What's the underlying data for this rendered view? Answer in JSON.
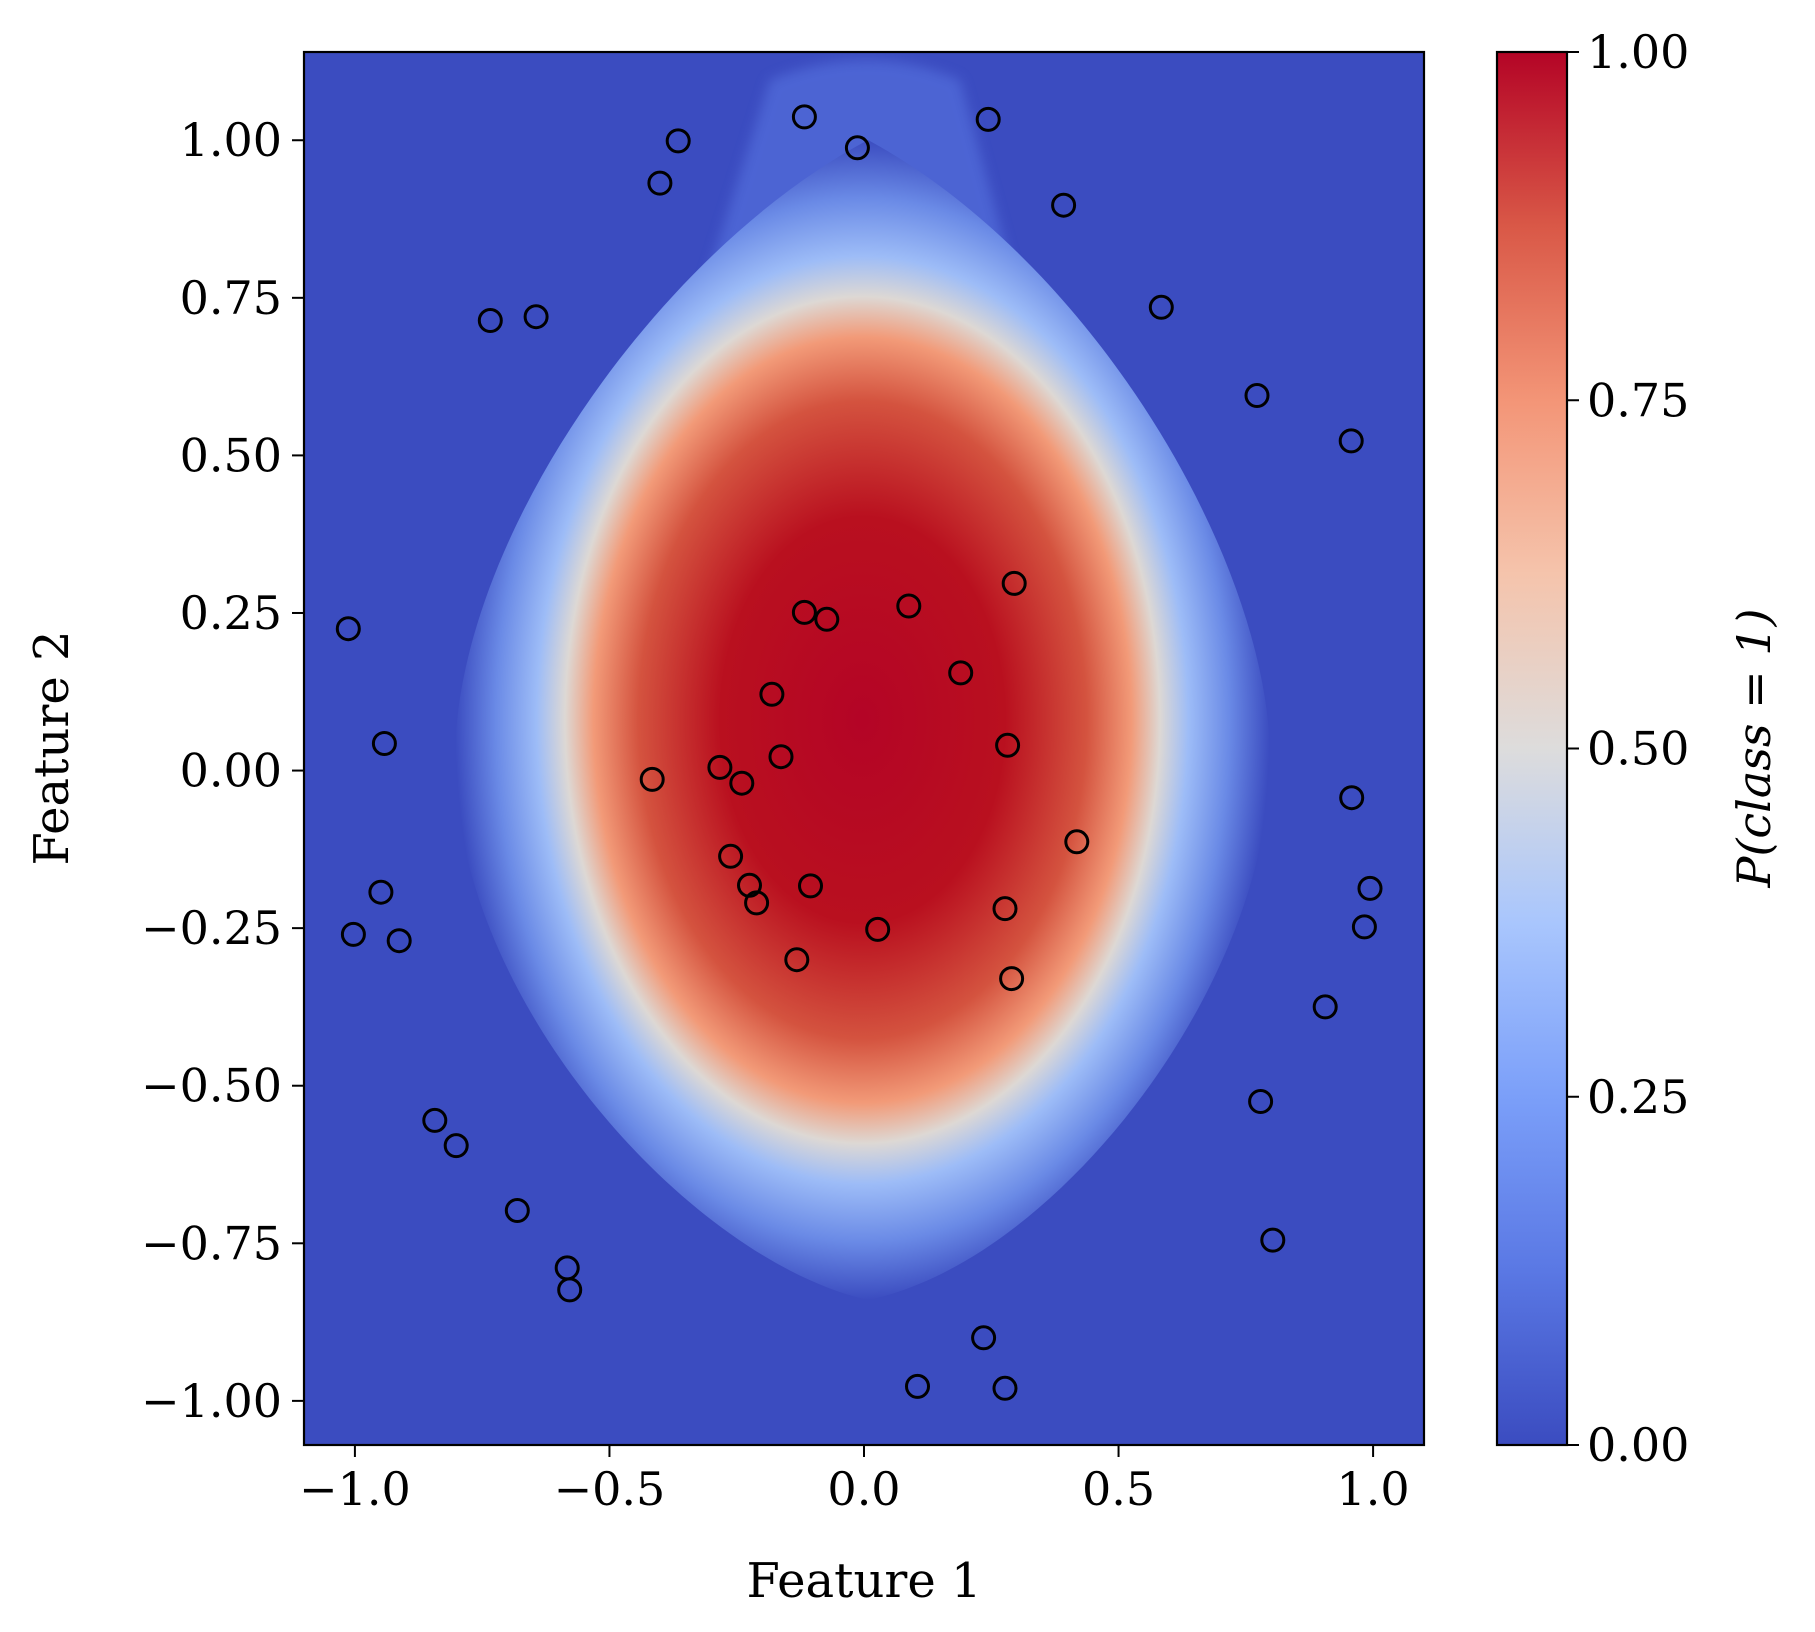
{
  "chart_data": {
    "type": "scatter",
    "subtype": "classifier probability heatmap with scatter overlay",
    "xlabel": "Feature 1",
    "ylabel": "Feature 2",
    "xlim": [
      -1.1,
      1.1
    ],
    "ylim": [
      -1.07,
      1.14
    ],
    "x_ticks": [
      {
        "value": -1.0,
        "label": "−1.0"
      },
      {
        "value": -0.5,
        "label": "−0.5"
      },
      {
        "value": 0.0,
        "label": "0.0"
      },
      {
        "value": 0.5,
        "label": "0.5"
      },
      {
        "value": 1.0,
        "label": "1.0"
      }
    ],
    "y_ticks": [
      {
        "value": 1.0,
        "label": "1.00"
      },
      {
        "value": 0.75,
        "label": "0.75"
      },
      {
        "value": 0.5,
        "label": "0.50"
      },
      {
        "value": 0.25,
        "label": "0.25"
      },
      {
        "value": 0.0,
        "label": "0.00"
      },
      {
        "value": -0.25,
        "label": "−0.25"
      },
      {
        "value": -0.5,
        "label": "−0.50"
      },
      {
        "value": -0.75,
        "label": "−0.75"
      },
      {
        "value": -1.0,
        "label": "−1.00"
      }
    ],
    "grid": false,
    "colormap": "coolwarm",
    "colors": {
      "low": "#3b4cc0",
      "mid": "#dddddd",
      "high": "#b40426",
      "marker_edge": "#000000"
    },
    "colorbar": {
      "label": "P(class = 1)",
      "range": [
        0.0,
        1.0
      ],
      "ticks": [
        {
          "value": 1.0,
          "label": "1.00"
        },
        {
          "value": 0.75,
          "label": "0.75"
        },
        {
          "value": 0.5,
          "label": "0.50"
        },
        {
          "value": 0.25,
          "label": "0.25"
        },
        {
          "value": 0.0,
          "label": "0.00"
        }
      ]
    },
    "points": [
      [
        -0.117,
        1.037
      ],
      [
        -0.013,
        0.988
      ],
      [
        0.244,
        1.033
      ],
      [
        -0.365,
        0.999
      ],
      [
        -0.401,
        0.932
      ],
      [
        0.392,
        0.897
      ],
      [
        -0.734,
        0.714
      ],
      [
        -0.644,
        0.72
      ],
      [
        0.584,
        0.735
      ],
      [
        0.772,
        0.595
      ],
      [
        0.957,
        0.523
      ],
      [
        -1.013,
        0.225
      ],
      [
        -0.942,
        0.043
      ],
      [
        0.958,
        -0.043
      ],
      [
        0.994,
        -0.187
      ],
      [
        -0.949,
        -0.193
      ],
      [
        -1.003,
        -0.26
      ],
      [
        -0.913,
        -0.27
      ],
      [
        0.983,
        -0.248
      ],
      [
        0.906,
        -0.375
      ],
      [
        0.779,
        -0.525
      ],
      [
        0.803,
        -0.745
      ],
      [
        -0.843,
        -0.555
      ],
      [
        -0.801,
        -0.595
      ],
      [
        -0.681,
        -0.698
      ],
      [
        -0.583,
        -0.789
      ],
      [
        -0.578,
        -0.824
      ],
      [
        0.235,
        -0.9
      ],
      [
        0.105,
        -0.977
      ],
      [
        0.277,
        -0.98
      ],
      [
        0.295,
        0.297
      ],
      [
        -0.117,
        0.251
      ],
      [
        -0.073,
        0.24
      ],
      [
        0.088,
        0.261
      ],
      [
        0.19,
        0.155
      ],
      [
        -0.181,
        0.121
      ],
      [
        0.282,
        0.04
      ],
      [
        -0.163,
        0.022
      ],
      [
        -0.283,
        0.005
      ],
      [
        -0.24,
        -0.02
      ],
      [
        -0.416,
        -0.014
      ],
      [
        0.418,
        -0.113
      ],
      [
        -0.262,
        -0.136
      ],
      [
        -0.225,
        -0.182
      ],
      [
        -0.105,
        -0.183
      ],
      [
        -0.211,
        -0.21
      ],
      [
        0.277,
        -0.219
      ],
      [
        0.027,
        -0.252
      ],
      [
        -0.132,
        -0.3
      ],
      [
        0.29,
        -0.33
      ]
    ]
  }
}
